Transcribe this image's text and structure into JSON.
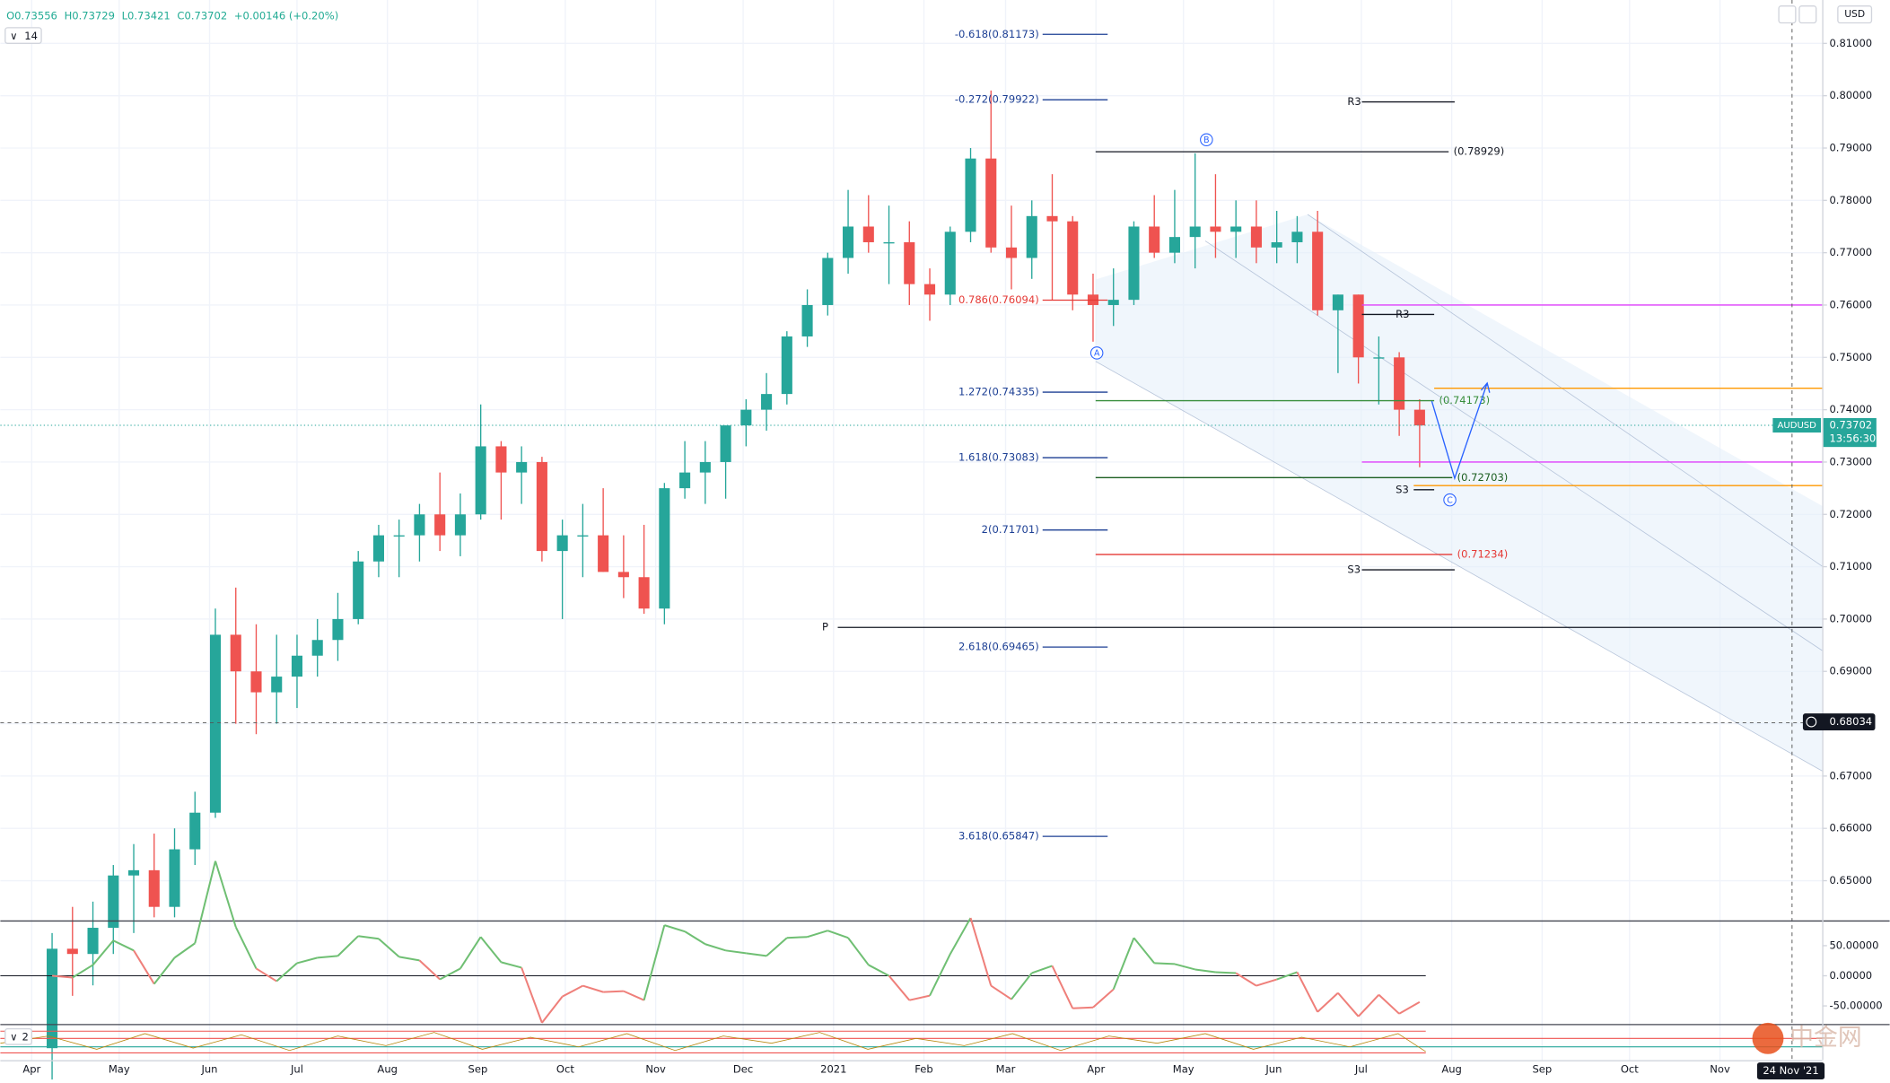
{
  "chart_data": {
    "type": "candlestick",
    "symbol": "AUDUSD",
    "header": {
      "open": "O0.73556",
      "high": "H0.73729",
      "low": "L0.73421",
      "close": "C0.73702",
      "change": "+0.00146 (+0.20%)"
    },
    "indicator_label": "14",
    "lower_indicator_label": "2",
    "currency": "USD",
    "up_color": "#26a69a",
    "down_color": "#ef5350",
    "ylim": [
      0.64242,
      0.81829
    ],
    "yticks": [
      {
        "value": 0.81,
        "label": "0.81000"
      },
      {
        "value": 0.8,
        "label": "0.80000"
      },
      {
        "value": 0.79,
        "label": "0.79000"
      },
      {
        "value": 0.78,
        "label": "0.78000"
      },
      {
        "value": 0.77,
        "label": "0.77000"
      },
      {
        "value": 0.76,
        "label": "0.76000"
      },
      {
        "value": 0.75,
        "label": "0.75000"
      },
      {
        "value": 0.74,
        "label": "0.74000"
      },
      {
        "value": 0.73,
        "label": "0.73000"
      },
      {
        "value": 0.72,
        "label": "0.72000"
      },
      {
        "value": 0.71,
        "label": "0.71000"
      },
      {
        "value": 0.7,
        "label": "0.70000"
      },
      {
        "value": 0.69,
        "label": "0.69000"
      },
      {
        "value": 0.68,
        "label": "0.68000"
      },
      {
        "value": 0.67,
        "label": "0.67000"
      },
      {
        "value": 0.66,
        "label": "0.66000"
      },
      {
        "value": 0.65,
        "label": "0.65000"
      }
    ],
    "grid": true,
    "current_price": 0.73702,
    "countdown": "13:56:30",
    "crosshair_price": 0.68034,
    "crosshair_date": "24 Nov '21",
    "xtick_labels": [
      "Apr",
      "May",
      "Jun",
      "Jul",
      "Aug",
      "Sep",
      "Oct",
      "Nov",
      "Dec",
      "2021",
      "Feb",
      "Mar",
      "Apr",
      "May",
      "Jun",
      "Jul",
      "Aug",
      "Sep",
      "Oct",
      "Nov"
    ],
    "candles": [
      [
        0.618,
        0.64,
        0.612,
        0.637
      ],
      [
        0.637,
        0.645,
        0.628,
        0.636
      ],
      [
        0.636,
        0.646,
        0.63,
        0.641
      ],
      [
        0.641,
        0.653,
        0.636,
        0.651
      ],
      [
        0.651,
        0.657,
        0.64,
        0.652
      ],
      [
        0.652,
        0.659,
        0.643,
        0.645
      ],
      [
        0.645,
        0.66,
        0.643,
        0.656
      ],
      [
        0.656,
        0.667,
        0.653,
        0.663
      ],
      [
        0.663,
        0.702,
        0.662,
        0.697
      ],
      [
        0.697,
        0.706,
        0.68,
        0.69
      ],
      [
        0.69,
        0.699,
        0.678,
        0.686
      ],
      [
        0.686,
        0.697,
        0.68,
        0.689
      ],
      [
        0.689,
        0.697,
        0.683,
        0.693
      ],
      [
        0.693,
        0.7,
        0.689,
        0.696
      ],
      [
        0.696,
        0.705,
        0.692,
        0.7
      ],
      [
        0.7,
        0.713,
        0.699,
        0.711
      ],
      [
        0.711,
        0.718,
        0.708,
        0.716
      ],
      [
        0.716,
        0.719,
        0.708,
        0.716
      ],
      [
        0.716,
        0.722,
        0.711,
        0.72
      ],
      [
        0.72,
        0.728,
        0.713,
        0.716
      ],
      [
        0.716,
        0.724,
        0.712,
        0.72
      ],
      [
        0.72,
        0.741,
        0.719,
        0.733
      ],
      [
        0.733,
        0.734,
        0.719,
        0.728
      ],
      [
        0.728,
        0.733,
        0.722,
        0.73
      ],
      [
        0.73,
        0.731,
        0.711,
        0.713
      ],
      [
        0.713,
        0.719,
        0.7,
        0.716
      ],
      [
        0.716,
        0.722,
        0.708,
        0.716
      ],
      [
        0.716,
        0.725,
        0.709,
        0.709
      ],
      [
        0.709,
        0.716,
        0.704,
        0.708
      ],
      [
        0.708,
        0.718,
        0.701,
        0.702
      ],
      [
        0.702,
        0.726,
        0.699,
        0.725
      ],
      [
        0.725,
        0.734,
        0.723,
        0.728
      ],
      [
        0.728,
        0.734,
        0.722,
        0.73
      ],
      [
        0.73,
        0.737,
        0.723,
        0.737
      ],
      [
        0.737,
        0.742,
        0.733,
        0.74
      ],
      [
        0.74,
        0.747,
        0.736,
        0.743
      ],
      [
        0.743,
        0.755,
        0.741,
        0.754
      ],
      [
        0.754,
        0.763,
        0.752,
        0.76
      ],
      [
        0.76,
        0.77,
        0.758,
        0.769
      ],
      [
        0.769,
        0.782,
        0.766,
        0.775
      ],
      [
        0.775,
        0.781,
        0.77,
        0.772
      ],
      [
        0.772,
        0.779,
        0.764,
        0.772
      ],
      [
        0.772,
        0.776,
        0.76,
        0.764
      ],
      [
        0.764,
        0.767,
        0.757,
        0.762
      ],
      [
        0.762,
        0.775,
        0.76,
        0.774
      ],
      [
        0.774,
        0.79,
        0.772,
        0.788
      ],
      [
        0.788,
        0.801,
        0.77,
        0.771
      ],
      [
        0.771,
        0.779,
        0.763,
        0.769
      ],
      [
        0.769,
        0.78,
        0.765,
        0.777
      ],
      [
        0.777,
        0.785,
        0.761,
        0.776
      ],
      [
        0.776,
        0.777,
        0.759,
        0.762
      ],
      [
        0.762,
        0.766,
        0.753,
        0.76
      ],
      [
        0.76,
        0.767,
        0.756,
        0.761
      ],
      [
        0.761,
        0.776,
        0.76,
        0.775
      ],
      [
        0.775,
        0.781,
        0.769,
        0.77
      ],
      [
        0.77,
        0.782,
        0.768,
        0.773
      ],
      [
        0.773,
        0.789,
        0.767,
        0.775
      ],
      [
        0.775,
        0.785,
        0.769,
        0.774
      ],
      [
        0.774,
        0.78,
        0.769,
        0.775
      ],
      [
        0.775,
        0.78,
        0.768,
        0.771
      ],
      [
        0.771,
        0.778,
        0.768,
        0.772
      ],
      [
        0.772,
        0.777,
        0.768,
        0.774
      ],
      [
        0.774,
        0.778,
        0.758,
        0.759
      ],
      [
        0.759,
        0.762,
        0.747,
        0.762
      ],
      [
        0.762,
        0.762,
        0.745,
        0.75
      ],
      [
        0.75,
        0.754,
        0.741,
        0.75
      ],
      [
        0.75,
        0.751,
        0.735,
        0.74
      ],
      [
        0.74,
        0.742,
        0.729,
        0.737
      ]
    ],
    "fib_levels": [
      {
        "label": "-0.618(0.81173)",
        "value": 0.81173,
        "color": "#1c3f94"
      },
      {
        "label": "-0.272(0.79922)",
        "value": 0.79922,
        "color": "#1c3f94"
      },
      {
        "label": "0.786(0.76094)",
        "value": 0.76094,
        "color": "#e53935"
      },
      {
        "label": "1.272(0.74335)",
        "value": 0.74335,
        "color": "#1c3f94"
      },
      {
        "label": "1.618(0.73083)",
        "value": 0.73083,
        "color": "#1c3f94"
      },
      {
        "label": "2(0.71701)",
        "value": 0.71701,
        "color": "#1c3f94"
      },
      {
        "label": "2.618(0.69465)",
        "value": 0.69465,
        "color": "#1c3f94"
      },
      {
        "label": "3.618(0.65847)",
        "value": 0.65847,
        "color": "#1c3f94"
      }
    ],
    "projection_levels": [
      {
        "label": "(0.78929)",
        "value": 0.78929,
        "color": "#131722"
      },
      {
        "label": "(0.74173)",
        "value": 0.74173,
        "color": "#388e3c"
      },
      {
        "label": "(0.72703)",
        "value": 0.72703,
        "color": "#1b5e20"
      },
      {
        "label": "(0.71234)",
        "value": 0.71234,
        "color": "#e53935"
      }
    ],
    "pivots": [
      {
        "label": "R3",
        "value": 0.79882
      },
      {
        "label": "S3",
        "value": 0.7094
      },
      {
        "label": "P",
        "value": 0.6984
      },
      {
        "label": "R3",
        "value": 0.7582
      },
      {
        "label": "S3",
        "value": 0.7247
      }
    ],
    "zones": [
      {
        "value": 0.76,
        "color": "#e040fb"
      },
      {
        "value": 0.73,
        "color": "#e040fb"
      },
      {
        "value": 0.7441,
        "color": "#ff9800"
      },
      {
        "value": 0.7255,
        "color": "#ff9800"
      }
    ],
    "waves": [
      "A",
      "B",
      "C"
    ],
    "oscillator_ticks": [
      {
        "value": 50,
        "label": "50.00000"
      },
      {
        "value": 0,
        "label": "0.00000"
      },
      {
        "value": -50,
        "label": "-50.00000"
      }
    ],
    "watermark": "中金网"
  }
}
